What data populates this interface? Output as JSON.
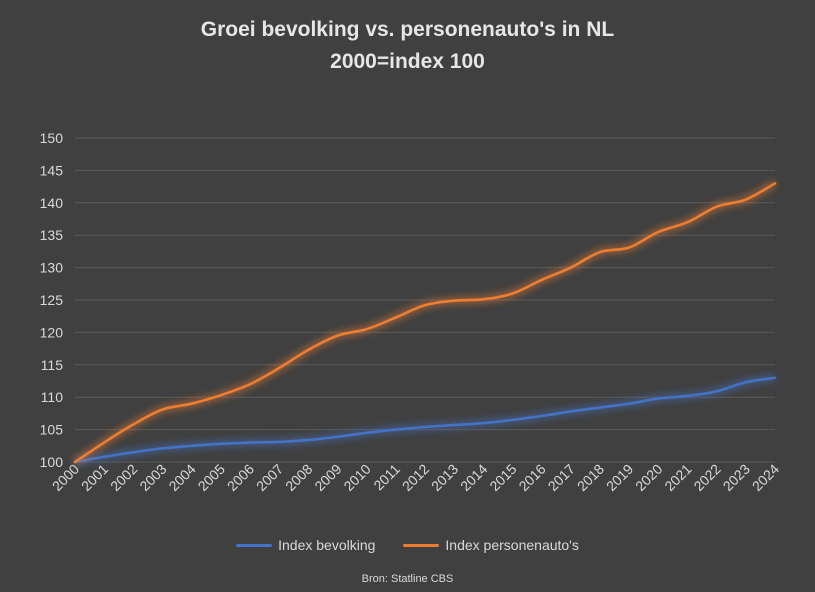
{
  "chart_data": {
    "type": "line",
    "title": "Groei bevolking vs. personenauto's in NL",
    "subtitle": "2000=index 100",
    "x": [
      "2000",
      "2001",
      "2002",
      "2003",
      "2004",
      "2005",
      "2006",
      "2007",
      "2008",
      "2009",
      "2010",
      "2011",
      "2012",
      "2013",
      "2014",
      "2015",
      "2016",
      "2017",
      "2018",
      "2019",
      "2020",
      "2021",
      "2022",
      "2023",
      "2024"
    ],
    "y_ticks": [
      "100",
      "105",
      "110",
      "115",
      "120",
      "125",
      "130",
      "135",
      "140",
      "145",
      "150"
    ],
    "ylim": [
      100,
      150
    ],
    "grid": true,
    "legend_position": "bottom",
    "series": [
      {
        "name": "Index bevolking",
        "color": "#4472c4",
        "values": [
          100.0,
          100.8,
          101.5,
          102.1,
          102.5,
          102.8,
          103.0,
          103.1,
          103.4,
          103.9,
          104.5,
          105.0,
          105.4,
          105.7,
          106.0,
          106.5,
          107.1,
          107.8,
          108.4,
          109.0,
          109.8,
          110.2,
          110.9,
          112.3,
          113.0
        ],
        "legend_label": "Index bevolking"
      },
      {
        "name": "Index personenauto's",
        "color": "#ed7d31",
        "values": [
          100.0,
          103.0,
          105.8,
          108.1,
          109.0,
          110.3,
          112.0,
          114.5,
          117.3,
          119.5,
          120.5,
          122.3,
          124.2,
          124.9,
          125.1,
          126.0,
          128.1,
          130.0,
          132.4,
          133.1,
          135.5,
          137.0,
          139.4,
          140.5,
          143.0
        ],
        "legend_label": "Index personenauto's"
      }
    ]
  },
  "source": "Bron: Statline CBS"
}
